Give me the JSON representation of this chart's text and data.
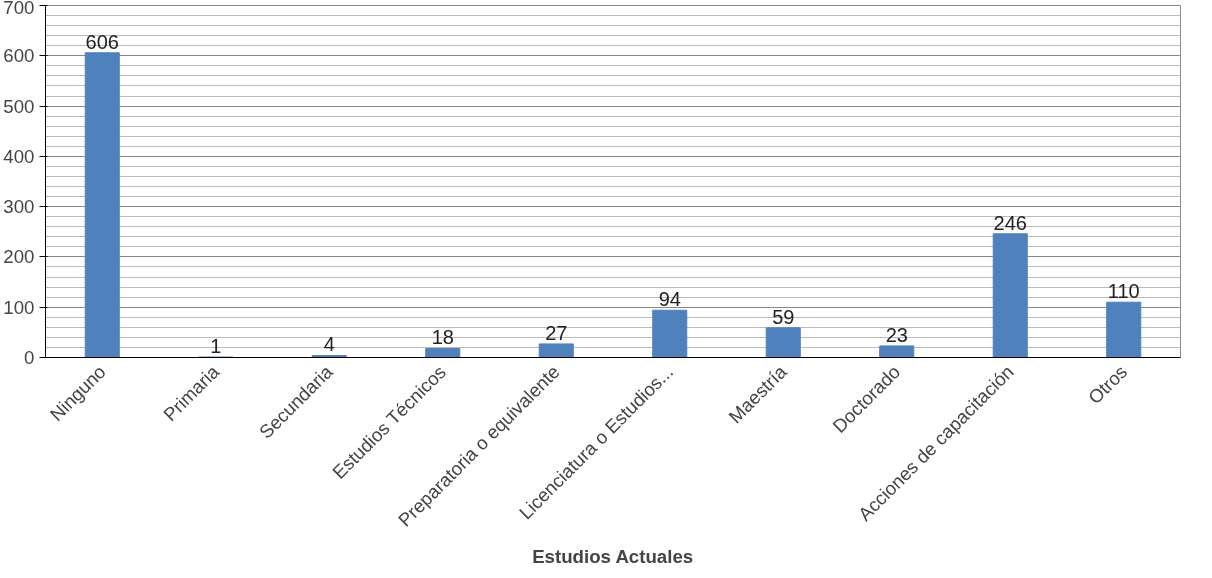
{
  "chart_data": {
    "type": "bar",
    "xlabel": "Estudios Actuales",
    "categories": [
      "Ninguno",
      "Primaria",
      "Secundaria",
      "Estudios Técnicos",
      "Preparatoria o equivalente",
      "Licenciatura o Estudios...",
      "Maestría",
      "Doctorado",
      "Acciones de capacitación",
      "Otros"
    ],
    "values": [
      606,
      1,
      4,
      18,
      27,
      94,
      59,
      23,
      246,
      110
    ],
    "color": "#4f81bd",
    "ylim": [
      0,
      700
    ],
    "yticks": [
      0,
      100,
      200,
      300,
      400,
      500,
      600,
      700
    ],
    "grid": "y",
    "data_labels": true
  }
}
